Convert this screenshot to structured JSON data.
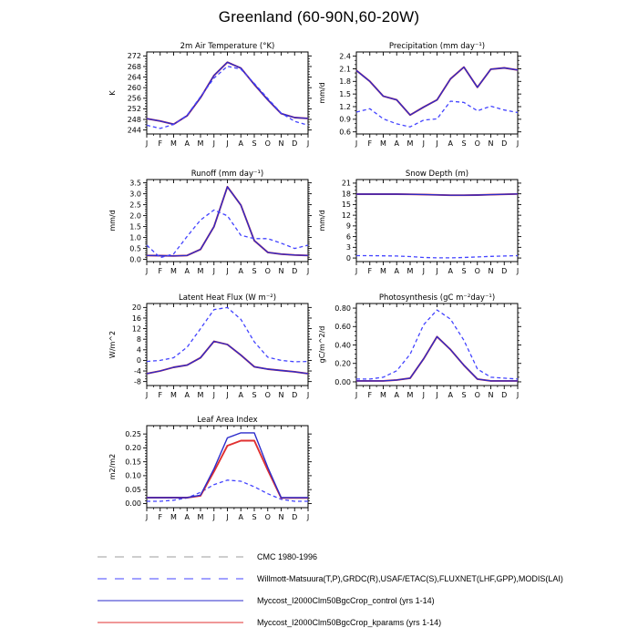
{
  "page_title": "Greenland (60-90N,60-20W)",
  "months": [
    "J",
    "F",
    "M",
    "A",
    "M",
    "J",
    "J",
    "A",
    "S",
    "O",
    "N",
    "D",
    "J"
  ],
  "series_styles": {
    "cmc": {
      "color": "#9c9c9c",
      "dash": "4,3",
      "legend_dash": "10,9",
      "width": 1.0
    },
    "obs": {
      "color": "#4343ff",
      "dash": "4,3",
      "legend_dash": "10,9",
      "width": 1.3
    },
    "control": {
      "color": "#2b2bcb",
      "dash": "",
      "legend_dash": "",
      "width": 1.4
    },
    "kparams": {
      "color": "#e03030",
      "dash": "",
      "legend_dash": "",
      "width": 1.9
    }
  },
  "legend": [
    {
      "series": "cmc",
      "label": "CMC 1980-1996"
    },
    {
      "series": "obs",
      "label": "Willmott-Matsuura(T,P),GRDC(R),USAF/ETAC(S),FLUXNET(LHF,GPP),MODIS(LAI)"
    },
    {
      "series": "control",
      "label": "Myccost_I2000Clm50BgcCrop_control (yrs 1-14)"
    },
    {
      "series": "kparams",
      "label": "Myccost_I2000Clm50BgcCrop_kparams (yrs 1-14)"
    }
  ],
  "chart_data": [
    {
      "type": "line",
      "title": "2m Air Temperature (°K)",
      "ylabel": "K",
      "ylim": [
        242.5,
        273.5
      ],
      "yticks": [
        244,
        248,
        252,
        256,
        260,
        264,
        268,
        272
      ],
      "ytick_labels": [
        "244",
        "248",
        "252",
        "256",
        "260",
        "264",
        "268",
        "272"
      ],
      "yminor_divs": 4,
      "series": [
        {
          "key": "kparams",
          "values": [
            248.3,
            247.4,
            246.2,
            249.4,
            256.2,
            264.6,
            269.6,
            267.4,
            261.2,
            255.4,
            250.2,
            248.7,
            248.4
          ]
        },
        {
          "key": "control",
          "values": [
            248.3,
            247.4,
            246.2,
            249.4,
            256.2,
            264.6,
            269.6,
            267.4,
            261.2,
            255.4,
            250.2,
            248.7,
            248.4
          ]
        },
        {
          "key": "obs",
          "values": [
            245.8,
            244.6,
            246.1,
            249.6,
            256.6,
            263.6,
            268.1,
            267.0,
            261.6,
            255.9,
            250.4,
            247.3,
            245.8
          ]
        }
      ]
    },
    {
      "type": "line",
      "title": "Precipitation (mm day⁻¹)",
      "ylabel": "mm/d",
      "ylim": [
        0.55,
        2.5
      ],
      "yticks": [
        0.6,
        0.9,
        1.2,
        1.5,
        1.8,
        2.1,
        2.4
      ],
      "ytick_labels": [
        "0.6",
        "0.9",
        "1.2",
        "1.5",
        "1.8",
        "2.1",
        "2.4"
      ],
      "yminor_divs": 3,
      "series": [
        {
          "key": "kparams",
          "values": [
            2.06,
            1.8,
            1.45,
            1.36,
            1.0,
            1.19,
            1.36,
            1.86,
            2.14,
            1.66,
            2.09,
            2.12,
            2.07
          ]
        },
        {
          "key": "control",
          "values": [
            2.06,
            1.8,
            1.45,
            1.36,
            1.0,
            1.19,
            1.36,
            1.86,
            2.14,
            1.66,
            2.09,
            2.12,
            2.07
          ]
        },
        {
          "key": "obs",
          "values": [
            1.07,
            1.15,
            0.91,
            0.79,
            0.72,
            0.88,
            0.91,
            1.33,
            1.3,
            1.1,
            1.21,
            1.12,
            1.06
          ]
        }
      ]
    },
    {
      "type": "line",
      "title": "Runoff (mm day⁻¹)",
      "ylabel": "mm/d",
      "ylim": [
        -0.1,
        3.65
      ],
      "yticks": [
        0.0,
        0.5,
        1.0,
        1.5,
        2.0,
        2.5,
        3.0,
        3.5
      ],
      "ytick_labels": [
        "0.0",
        "0.5",
        "1.0",
        "1.5",
        "2.0",
        "2.5",
        "3.0",
        "3.5"
      ],
      "yminor_divs": 5,
      "series": [
        {
          "key": "kparams",
          "values": [
            0.18,
            0.17,
            0.16,
            0.18,
            0.46,
            1.5,
            3.32,
            2.48,
            0.86,
            0.32,
            0.24,
            0.2,
            0.18
          ]
        },
        {
          "key": "control",
          "values": [
            0.18,
            0.17,
            0.16,
            0.18,
            0.46,
            1.5,
            3.32,
            2.48,
            0.86,
            0.32,
            0.24,
            0.2,
            0.18
          ]
        },
        {
          "key": "obs",
          "values": [
            0.65,
            0.08,
            0.25,
            1.05,
            1.8,
            2.26,
            1.99,
            1.1,
            0.95,
            0.95,
            0.74,
            0.5,
            0.65
          ]
        }
      ]
    },
    {
      "type": "line",
      "title": "Snow Depth (m)",
      "ylabel": "mm/d",
      "ylim": [
        -1,
        22
      ],
      "yticks": [
        0,
        3,
        6,
        9,
        12,
        15,
        18,
        21
      ],
      "ytick_labels": [
        "0",
        "3",
        "6",
        "9",
        "12",
        "15",
        "18",
        "21"
      ],
      "yminor_divs": 3,
      "series": [
        {
          "key": "kparams",
          "values": [
            17.9,
            17.9,
            17.9,
            17.9,
            17.85,
            17.8,
            17.7,
            17.6,
            17.6,
            17.65,
            17.75,
            17.85,
            17.95
          ]
        },
        {
          "key": "control",
          "values": [
            17.9,
            17.9,
            17.9,
            17.9,
            17.85,
            17.8,
            17.7,
            17.6,
            17.6,
            17.65,
            17.75,
            17.85,
            17.95
          ]
        },
        {
          "key": "obs",
          "values": [
            0.65,
            0.65,
            0.6,
            0.55,
            0.4,
            0.15,
            0.05,
            0.05,
            0.15,
            0.3,
            0.45,
            0.55,
            0.65
          ]
        }
      ]
    },
    {
      "type": "line",
      "title": "Latent Heat Flux (W m⁻²)",
      "ylabel": "W/m^2",
      "ylim": [
        -9.5,
        21.5
      ],
      "yticks": [
        -8,
        -4,
        0,
        4,
        8,
        12,
        16,
        20
      ],
      "ytick_labels": [
        "-8",
        "-4",
        "0",
        "4",
        "8",
        "12",
        "16",
        "20"
      ],
      "yminor_divs": 4,
      "series": [
        {
          "key": "kparams",
          "values": [
            -5.0,
            -4.0,
            -2.6,
            -1.8,
            1.0,
            7.2,
            6.0,
            2.0,
            -2.4,
            -3.3,
            -3.8,
            -4.3,
            -5.0
          ]
        },
        {
          "key": "control",
          "values": [
            -5.0,
            -4.0,
            -2.6,
            -1.8,
            1.0,
            7.2,
            6.0,
            2.0,
            -2.4,
            -3.3,
            -3.8,
            -4.3,
            -5.0
          ]
        },
        {
          "key": "obs",
          "values": [
            -0.4,
            0.0,
            1.0,
            5.0,
            12.0,
            19.2,
            20.0,
            15.5,
            7.0,
            1.2,
            0.0,
            -0.5,
            -0.4
          ]
        }
      ]
    },
    {
      "type": "line",
      "title": "Photosynthesis (gC m⁻²day⁻¹)",
      "ylabel": "gC/m^2/d",
      "ylim": [
        -0.04,
        0.85
      ],
      "yticks": [
        0.0,
        0.2,
        0.4,
        0.6,
        0.8
      ],
      "ytick_labels": [
        "0.00",
        "0.20",
        "0.40",
        "0.60",
        "0.80"
      ],
      "yminor_divs": 4,
      "series": [
        {
          "key": "kparams",
          "values": [
            0.01,
            0.01,
            0.01,
            0.02,
            0.04,
            0.25,
            0.49,
            0.35,
            0.18,
            0.03,
            0.01,
            0.01,
            0.01
          ]
        },
        {
          "key": "control",
          "values": [
            0.01,
            0.01,
            0.01,
            0.02,
            0.04,
            0.25,
            0.49,
            0.35,
            0.18,
            0.03,
            0.01,
            0.01,
            0.01
          ]
        },
        {
          "key": "obs",
          "values": [
            0.03,
            0.03,
            0.05,
            0.12,
            0.3,
            0.62,
            0.78,
            0.68,
            0.45,
            0.14,
            0.05,
            0.04,
            0.03
          ]
        }
      ]
    },
    {
      "type": "line",
      "title": "Leaf Area Index",
      "ylabel": "m2/m2",
      "ylim": [
        -0.015,
        0.28
      ],
      "yticks": [
        0.0,
        0.05,
        0.1,
        0.15,
        0.2,
        0.25
      ],
      "ytick_labels": [
        "0.00",
        "0.05",
        "0.10",
        "0.15",
        "0.20",
        "0.25"
      ],
      "yminor_divs": 5,
      "series": [
        {
          "key": "obs",
          "values": [
            0.008,
            0.008,
            0.012,
            0.02,
            0.04,
            0.068,
            0.084,
            0.08,
            0.06,
            0.035,
            0.015,
            0.008,
            0.008
          ]
        },
        {
          "key": "kparams",
          "values": [
            0.021,
            0.021,
            0.021,
            0.021,
            0.028,
            0.115,
            0.208,
            0.226,
            0.226,
            0.12,
            0.02,
            0.02,
            0.02
          ]
        },
        {
          "key": "control",
          "values": [
            0.021,
            0.021,
            0.021,
            0.021,
            0.03,
            0.125,
            0.236,
            0.254,
            0.254,
            0.13,
            0.021,
            0.021,
            0.021
          ]
        }
      ]
    }
  ]
}
